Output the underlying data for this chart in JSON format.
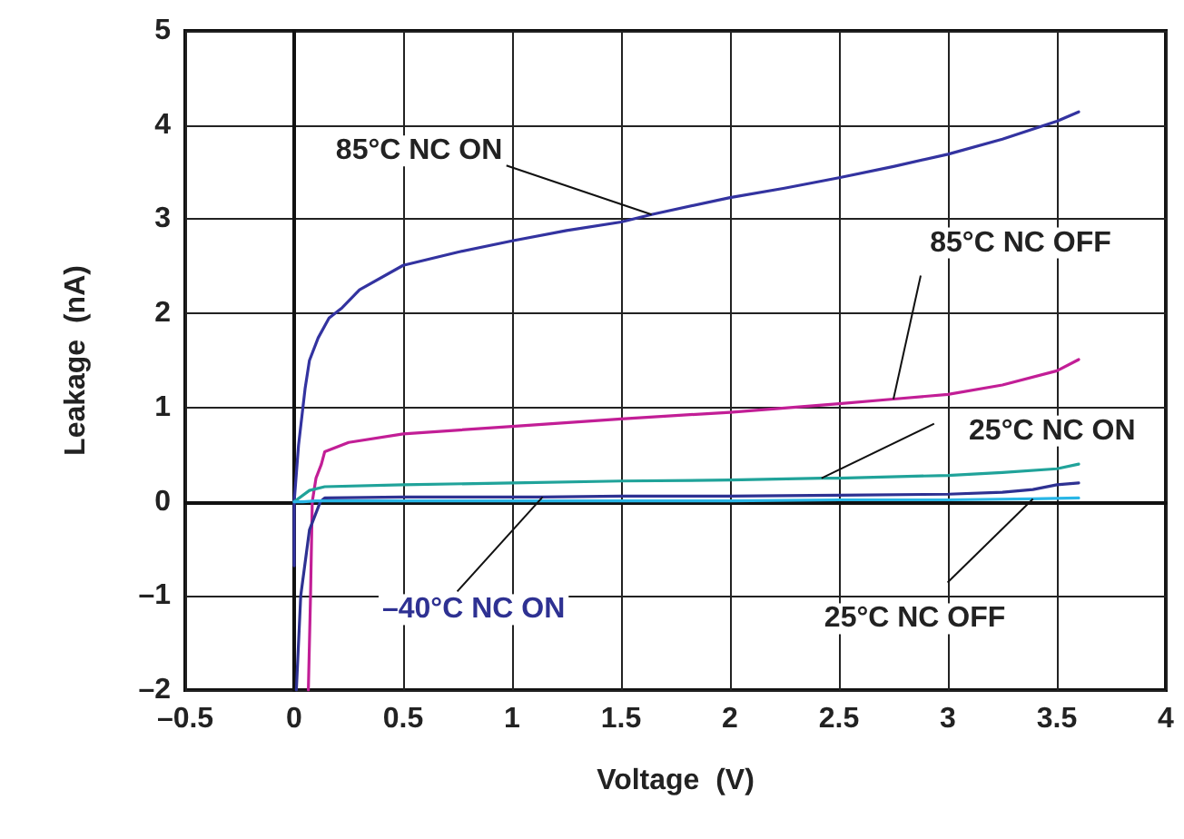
{
  "chart_data": {
    "type": "line",
    "xlabel": "Voltage  (V)",
    "ylabel": "Leakage  (nA)",
    "xlim": [
      -0.5,
      4
    ],
    "ylim": [
      -2,
      5
    ],
    "xticks": [
      {
        "value": -0.5,
        "label": "–0.5"
      },
      0,
      0.5,
      1,
      1.5,
      2,
      2.5,
      3,
      3.5,
      4
    ],
    "yticks": [
      {
        "value": -2,
        "label": "–2"
      },
      {
        "value": -1,
        "label": "–1"
      },
      0,
      1,
      2,
      3,
      4,
      5
    ],
    "grid": true,
    "marker": "none",
    "line_style": "solid",
    "series": [
      {
        "name": "85°C NC ON",
        "color": "#3333a0",
        "x": [
          0,
          0,
          0.02,
          0.05,
          0.07,
          0.11,
          0.16,
          0.22,
          0.3,
          0.5,
          0.75,
          1.0,
          1.25,
          1.5,
          1.64,
          2.0,
          2.25,
          2.5,
          2.75,
          3.0,
          3.25,
          3.5,
          3.6
        ],
        "values": [
          -0.68,
          0,
          0.6,
          1.2,
          1.5,
          1.74,
          1.95,
          2.06,
          2.25,
          2.51,
          2.65,
          2.77,
          2.88,
          2.97,
          3.05,
          3.23,
          3.33,
          3.44,
          3.56,
          3.69,
          3.85,
          4.04,
          4.14
        ]
      },
      {
        "name": "85°C NC OFF",
        "color": "#c21e96",
        "x": [
          0.065,
          0.075,
          0.083,
          0.1,
          0.125,
          0.14,
          0.25,
          0.5,
          1.0,
          1.5,
          2.0,
          2.5,
          2.75,
          3.0,
          3.25,
          3.5,
          3.6
        ],
        "values": [
          -2,
          -1,
          0,
          0.25,
          0.4,
          0.53,
          0.63,
          0.72,
          0.8,
          0.88,
          0.95,
          1.04,
          1.09,
          1.14,
          1.24,
          1.39,
          1.51
        ]
      },
      {
        "name": "25°C NC ON",
        "color": "#20a39a",
        "x": [
          0,
          0.07,
          0.14,
          0.5,
          1.0,
          1.5,
          2.0,
          2.42,
          2.5,
          3.0,
          3.25,
          3.5,
          3.6
        ],
        "values": [
          0,
          0.12,
          0.16,
          0.18,
          0.2,
          0.22,
          0.23,
          0.25,
          0.25,
          0.28,
          0.31,
          0.35,
          0.4
        ]
      },
      {
        "name": "–40°C NC ON",
        "color": "#2e3192",
        "x": [
          0.01,
          0.03,
          0.07,
          0.12,
          0.14,
          0.5,
          1.0,
          1.14,
          1.5,
          2.0,
          2.5,
          3.0,
          3.25,
          3.39,
          3.5,
          3.6
        ],
        "values": [
          -2,
          -1,
          -0.3,
          0,
          0.04,
          0.05,
          0.05,
          0.05,
          0.06,
          0.06,
          0.07,
          0.08,
          0.1,
          0.13,
          0.18,
          0.2
        ]
      },
      {
        "name": "25°C NC OFF",
        "color": "#29b6e6",
        "x": [
          0,
          0.04,
          0.1,
          0.5,
          1.0,
          1.5,
          2.0,
          2.5,
          3.0,
          3.39,
          3.6
        ],
        "values": [
          0,
          0,
          0.01,
          0.01,
          0.01,
          0.01,
          0.01,
          0.02,
          0.02,
          0.03,
          0.04
        ]
      }
    ]
  }
}
